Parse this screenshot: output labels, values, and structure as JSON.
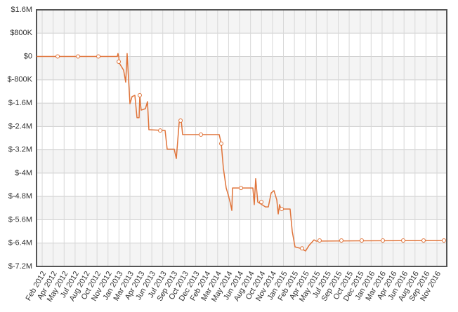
{
  "chart_data": {
    "type": "line",
    "xlim": [
      2012.015,
      2016.951
    ],
    "ylim": [
      -7200000,
      1600000
    ],
    "grid": true,
    "alternate_bands": true,
    "yticks": [
      {
        "value": 1600000,
        "label": "$1.6M"
      },
      {
        "value": 800000,
        "label": "$800K"
      },
      {
        "value": 0,
        "label": "$0"
      },
      {
        "value": -800000,
        "label": "$-800K"
      },
      {
        "value": -1600000,
        "label": "$-1.6M"
      },
      {
        "value": -2400000,
        "label": "$-2.4M"
      },
      {
        "value": -3200000,
        "label": "$-3.2M"
      },
      {
        "value": -4000000,
        "label": "$-4M"
      },
      {
        "value": -4800000,
        "label": "$-4.8M"
      },
      {
        "value": -5600000,
        "label": "$-5.6M"
      },
      {
        "value": -6400000,
        "label": "$-6.4M"
      },
      {
        "value": -7200000,
        "label": "$-7.2M"
      }
    ],
    "xticks": [
      {
        "value": 2012.083,
        "label": "Feb 2012"
      },
      {
        "value": 2012.215,
        "label": "Apr 2012"
      },
      {
        "value": 2012.347,
        "label": "May 2012"
      },
      {
        "value": 2012.479,
        "label": "Jul 2012"
      },
      {
        "value": 2012.611,
        "label": "Aug 2012"
      },
      {
        "value": 2012.743,
        "label": "Oct 2012"
      },
      {
        "value": 2012.875,
        "label": "Nov 2012"
      },
      {
        "value": 2013.007,
        "label": "Jan 2013"
      },
      {
        "value": 2013.139,
        "label": "Mar 2013"
      },
      {
        "value": 2013.27,
        "label": "Apr 2013"
      },
      {
        "value": 2013.402,
        "label": "Jun 2013"
      },
      {
        "value": 2013.534,
        "label": "Jul 2013"
      },
      {
        "value": 2013.666,
        "label": "Sep 2013"
      },
      {
        "value": 2013.798,
        "label": "Oct 2013"
      },
      {
        "value": 2013.93,
        "label": "Dec 2013"
      },
      {
        "value": 2014.062,
        "label": "Feb 2014"
      },
      {
        "value": 2014.194,
        "label": "Mar 2014"
      },
      {
        "value": 2014.326,
        "label": "May 2014"
      },
      {
        "value": 2014.458,
        "label": "Jun 2014"
      },
      {
        "value": 2014.59,
        "label": "Aug 2014"
      },
      {
        "value": 2014.722,
        "label": "Oct 2014"
      },
      {
        "value": 2014.854,
        "label": "Nov 2014"
      },
      {
        "value": 2014.986,
        "label": "Jan 2015"
      },
      {
        "value": 2015.118,
        "label": "Feb 2015"
      },
      {
        "value": 2015.25,
        "label": "Apr 2015"
      },
      {
        "value": 2015.382,
        "label": "May 2015"
      },
      {
        "value": 2015.513,
        "label": "Jul 2015"
      },
      {
        "value": 2015.645,
        "label": "Sep 2015"
      },
      {
        "value": 2015.777,
        "label": "Oct 2015"
      },
      {
        "value": 2015.909,
        "label": "Dec 2015"
      },
      {
        "value": 2016.041,
        "label": "Jan 2016"
      },
      {
        "value": 2016.173,
        "label": "Mar 2016"
      },
      {
        "value": 2016.305,
        "label": "Apr 2016"
      },
      {
        "value": 2016.437,
        "label": "Jun 2016"
      },
      {
        "value": 2016.569,
        "label": "Aug 2016"
      },
      {
        "value": 2016.701,
        "label": "Sep 2016"
      },
      {
        "value": 2016.833,
        "label": "Nov 2016"
      }
    ],
    "series": [
      {
        "color": "#e0743a",
        "x": [
          2012.015,
          2012.987,
          2012.995,
          2013.004,
          2013.012,
          2013.063,
          2013.088,
          2013.105,
          2013.139,
          2013.164,
          2013.198,
          2013.224,
          2013.249,
          2013.257,
          2013.274,
          2013.325,
          2013.35,
          2013.367,
          2013.562,
          2013.587,
          2013.672,
          2013.697,
          2013.731,
          2013.756,
          2013.773,
          2014.213,
          2014.238,
          2014.263,
          2014.297,
          2014.322,
          2014.348,
          2014.365,
          2014.373,
          2014.618,
          2014.635,
          2014.652,
          2014.677,
          2014.77,
          2014.804,
          2014.838,
          2014.872,
          2014.906,
          2014.923,
          2014.939,
          2014.956,
          2015.066,
          2015.092,
          2015.125,
          2015.193,
          2015.252,
          2015.294,
          2015.354,
          2015.379,
          2016.917
        ],
        "values": [
          0,
          0,
          100000,
          0,
          -230000,
          -470000,
          -880000,
          100000,
          -1620000,
          -1380000,
          -1330000,
          -2100000,
          -2100000,
          -1380000,
          -1840000,
          -1790000,
          -1550000,
          -2510000,
          -2540000,
          -3180000,
          -3180000,
          -3500000,
          -2270000,
          -2200000,
          -2680000,
          -2680000,
          -2990000,
          -3830000,
          -4510000,
          -4750000,
          -5040000,
          -5280000,
          -4510000,
          -4510000,
          -5080000,
          -4190000,
          -4990000,
          -5160000,
          -5160000,
          -4680000,
          -4600000,
          -4920000,
          -5400000,
          -5080000,
          -5230000,
          -5230000,
          -6000000,
          -6530000,
          -6580000,
          -6670000,
          -6480000,
          -6290000,
          -6330000,
          -6310000
        ]
      },
      {
        "color": "#e0743a",
        "markers_only": true,
        "x": [
          2012.269,
          2012.514,
          2012.759,
          2013.004,
          2013.257,
          2013.503,
          2013.748,
          2013.993,
          2014.238,
          2014.475,
          2014.72,
          2014.965,
          2015.21,
          2015.421,
          2015.683,
          2015.928,
          2016.182,
          2016.427,
          2016.672,
          2016.917
        ],
        "values": [
          0,
          0,
          0,
          -180000,
          -1330000,
          -2540000,
          -2200000,
          -2680000,
          -2990000,
          -4510000,
          -4990000,
          -5230000,
          -6580000,
          -6310000,
          -6310000,
          -6310000,
          -6310000,
          -6310000,
          -6310000,
          -6310000
        ]
      }
    ]
  }
}
